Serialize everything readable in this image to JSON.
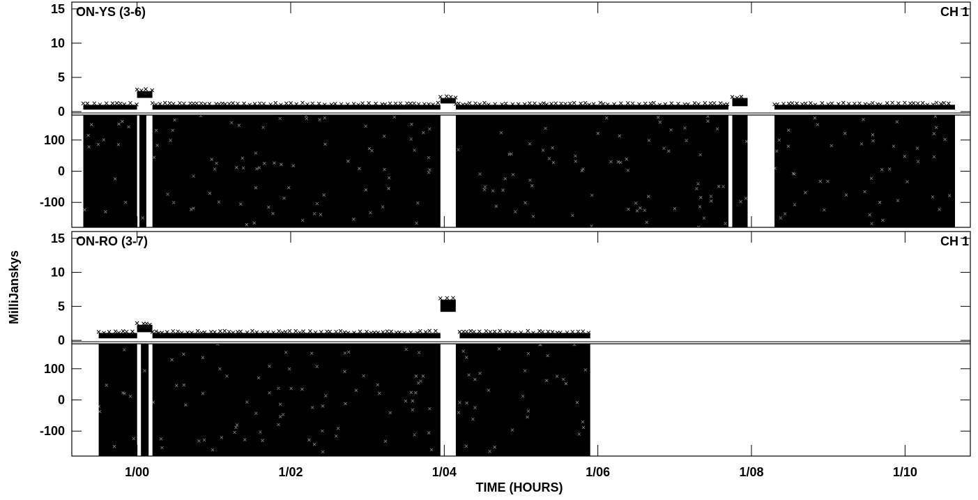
{
  "chart_data": {
    "type": "scatter",
    "xlabel": "TIME (HOURS)",
    "ylabel": "MilliJanskys",
    "x_ticks": [
      "1/00",
      "1/02",
      "1/04",
      "1/06",
      "1/08",
      "1/10"
    ],
    "x_tick_hours": [
      0,
      2,
      4,
      6,
      8,
      10
    ],
    "xlim_hours": [
      -0.85,
      10.85
    ],
    "marker": "x",
    "marker_color": "#000000",
    "zero_line_color": "#555555",
    "panels": [
      {
        "label": "ON-YS (3-6)",
        "channel": "CH 1",
        "amplitude": {
          "ticks": [
            "15",
            "10",
            "5",
            "0"
          ],
          "ylim": [
            -0.5,
            16
          ],
          "segments": [
            {
              "start": -0.7,
              "end": 0.0,
              "low": 0.3,
              "high": 1.0
            },
            {
              "start": 0.0,
              "end": 0.2,
              "low": 2.0,
              "high": 3.0
            },
            {
              "start": 0.2,
              "end": 3.95,
              "low": 0.3,
              "high": 1.0
            },
            {
              "start": 3.95,
              "end": 4.15,
              "low": 1.2,
              "high": 2.0
            },
            {
              "start": 4.15,
              "end": 7.7,
              "low": 0.3,
              "high": 1.0
            },
            {
              "start": 7.75,
              "end": 7.95,
              "low": 0.8,
              "high": 2.0
            },
            {
              "start": 8.3,
              "end": 10.65,
              "low": 0.3,
              "high": 1.0
            }
          ]
        },
        "phase": {
          "ticks": [
            "100",
            "0",
            "-100"
          ],
          "ylim": [
            -180,
            180
          ],
          "segments": [
            {
              "start": -0.7,
              "end": 0.0
            },
            {
              "start": 0.03,
              "end": 0.12
            },
            {
              "start": 0.2,
              "end": 3.95
            },
            {
              "start": 4.15,
              "end": 7.7
            },
            {
              "start": 7.75,
              "end": 7.95
            },
            {
              "start": 8.3,
              "end": 10.65
            }
          ]
        }
      },
      {
        "label": "ON-RO (3-7)",
        "channel": "CH 1",
        "amplitude": {
          "ticks": [
            "15",
            "10",
            "5",
            "0"
          ],
          "ylim": [
            -0.5,
            16
          ],
          "segments": [
            {
              "start": -0.5,
              "end": 0.0,
              "low": 0.3,
              "high": 1.1
            },
            {
              "start": 0.0,
              "end": 0.2,
              "low": 1.2,
              "high": 2.3
            },
            {
              "start": 0.2,
              "end": 3.95,
              "low": 0.3,
              "high": 1.1
            },
            {
              "start": 3.95,
              "end": 4.15,
              "low": 4.2,
              "high": 6.0
            },
            {
              "start": 4.2,
              "end": 5.9,
              "low": 0.3,
              "high": 1.1
            }
          ]
        },
        "phase": {
          "ticks": [
            "100",
            "0",
            "-100"
          ],
          "ylim": [
            -180,
            180
          ],
          "segments": [
            {
              "start": -0.5,
              "end": 0.0
            },
            {
              "start": 0.05,
              "end": 0.15
            },
            {
              "start": 0.2,
              "end": 3.95
            },
            {
              "start": 4.15,
              "end": 5.9
            }
          ]
        }
      }
    ]
  }
}
